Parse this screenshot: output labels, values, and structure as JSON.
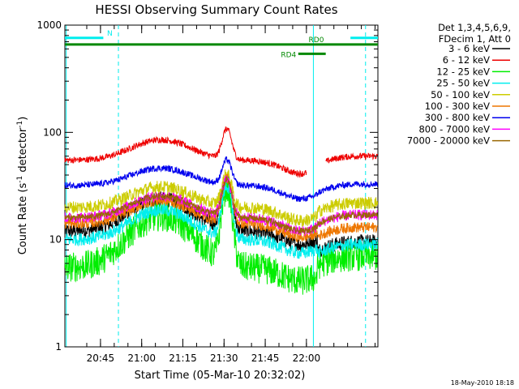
{
  "chart_data": {
    "type": "line",
    "title": "HESSI Observing Summary Count Rates",
    "xlabel": "Start Time (05-Mar-10 20:32:02)",
    "ylabel": "Count Rate (s",
    "ylabel_sup": "-1",
    "ylabel_mid": " detector",
    "ylabel_end": ")",
    "y_scale": "log",
    "ylim": [
      1,
      1000
    ],
    "xlim_minutes": [
      0,
      114
    ],
    "y_ticks": [
      {
        "value": 1,
        "label": "1"
      },
      {
        "value": 10,
        "label": "10"
      },
      {
        "value": 100,
        "label": "100"
      },
      {
        "value": 1000,
        "label": "1000"
      }
    ],
    "x_ticks": [
      {
        "minute": 12.97,
        "label": "20:45"
      },
      {
        "minute": 27.97,
        "label": "21:00"
      },
      {
        "minute": 42.97,
        "label": "21:15"
      },
      {
        "minute": 57.97,
        "label": "21:30"
      },
      {
        "minute": 72.97,
        "label": "21:45"
      },
      {
        "minute": 87.97,
        "label": "22:00"
      }
    ],
    "legend": {
      "header": [
        "Det 1,3,4,5,6,9,",
        "FDecim 1, Att 0"
      ],
      "position": "right"
    },
    "series": [
      {
        "name": "3 - 6 keV",
        "color": "#000000",
        "base": 12,
        "night": 9.5,
        "hump": 2.0,
        "flare": 3.0,
        "noise": 0.07
      },
      {
        "name": "6 - 12 keV",
        "color": "#ee0000",
        "base": 55,
        "night": 60,
        "hump": 1.55,
        "flare": 1.9,
        "noise": 0.03
      },
      {
        "name": "12 - 25 keV",
        "color": "#00ee00",
        "base": 5.5,
        "night": 7,
        "hump": 3.0,
        "flare": 5.0,
        "noise": 0.14
      },
      {
        "name": "25 - 50 keV",
        "color": "#00eeee",
        "base": 10,
        "night": 9,
        "hump": 1.9,
        "flare": 3.0,
        "noise": 0.06
      },
      {
        "name": "50 - 100 keV",
        "color": "#cccc00",
        "base": 20,
        "night": 22,
        "hump": 1.55,
        "flare": 2.0,
        "noise": 0.06
      },
      {
        "name": "100 - 300 keV",
        "color": "#ee7700",
        "base": 14,
        "night": 13,
        "hump": 1.65,
        "flare": 2.6,
        "noise": 0.05
      },
      {
        "name": "300 - 800 keV",
        "color": "#0000ee",
        "base": 32,
        "night": 33,
        "hump": 1.45,
        "flare": 1.7,
        "noise": 0.03
      },
      {
        "name": "800 - 7000 keV",
        "color": "#ff00ff",
        "base": 16,
        "night": 17,
        "hump": 1.6,
        "flare": 2.2,
        "noise": 0.05
      },
      {
        "name": "7000 - 20000 keV",
        "color": "#996600",
        "base": 16,
        "night": 17,
        "hump": 1.6,
        "flare": 2.2,
        "noise": 0.03
      }
    ],
    "flags": [
      {
        "label": "N",
        "color": "#00eeee",
        "start_min": 0,
        "end_min": 14,
        "level": 760
      },
      {
        "label": "",
        "color": "#00eeee",
        "start_min": 104,
        "end_min": 114,
        "level": 760
      },
      {
        "label": "RD0",
        "color": "#008800",
        "start_min": 0,
        "end_min": 114,
        "level": 660
      },
      {
        "label": "RD4",
        "color": "#008800",
        "start_min": 85,
        "end_min": 95,
        "level": 540
      }
    ],
    "night_markers": [
      {
        "minute": 0.5,
        "style": "solid"
      },
      {
        "minute": 19.5,
        "style": "dashed"
      },
      {
        "minute": 90.5,
        "style": "solid"
      },
      {
        "minute": 109.5,
        "style": "dashed"
      }
    ]
  },
  "timestamp": "18-May-2010 18:18"
}
